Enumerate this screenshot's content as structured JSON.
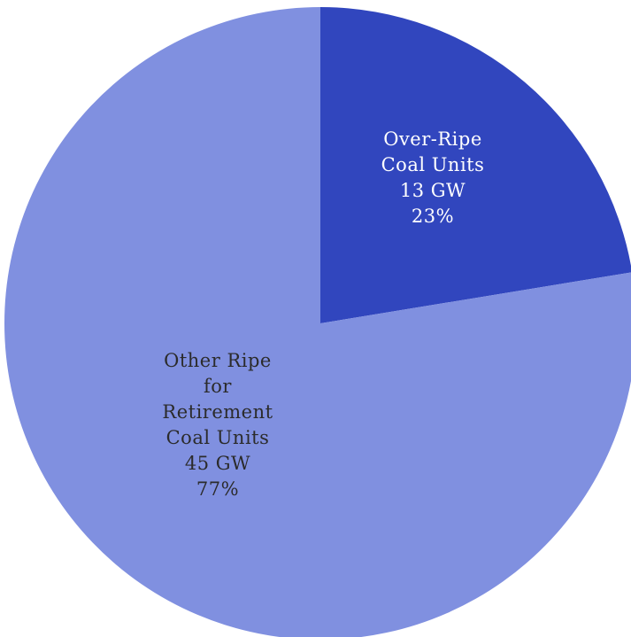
{
  "chart_data": {
    "type": "pie",
    "title": "",
    "start_angle_deg": 0,
    "direction": "clockwise",
    "slices": [
      {
        "name": "Over-Ripe Coal Units",
        "label_lines": [
          "Over-Ripe",
          "Coal Units",
          "13 GW",
          "23%"
        ],
        "value": 13,
        "unit": "GW",
        "percent": 23,
        "color": "#3146be",
        "label_color": "#ffffff"
      },
      {
        "name": "Other Ripe for Retirement Coal Units",
        "label_lines": [
          "Other Ripe",
          "for",
          "Retirement",
          "Coal Units",
          "45 GW",
          "77%"
        ],
        "value": 45,
        "unit": "GW",
        "percent": 77,
        "color": "#8090e0",
        "label_color": "#2b2b2b"
      }
    ]
  }
}
